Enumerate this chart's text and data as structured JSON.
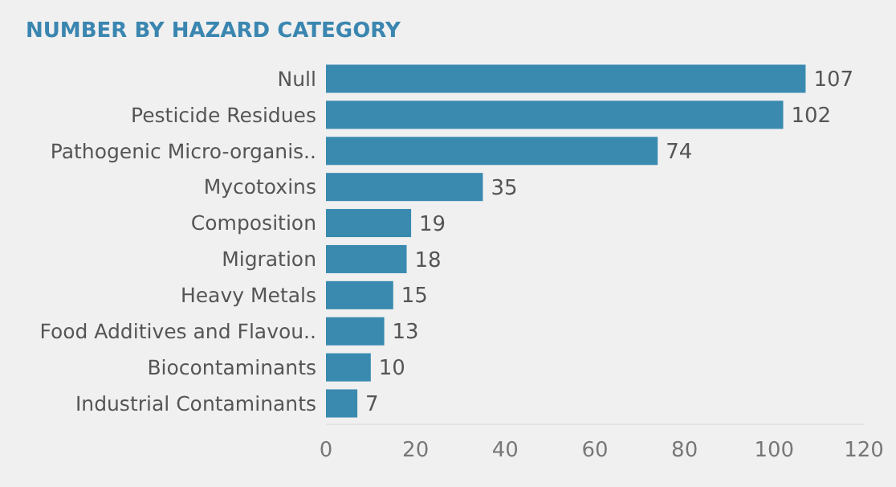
{
  "chart_data": {
    "type": "bar",
    "orientation": "horizontal",
    "title": "NUMBER BY HAZARD CATEGORY",
    "categories": [
      "Null",
      "Pesticide Residues",
      "Pathogenic Micro-organis..",
      "Mycotoxins",
      "Composition",
      "Migration",
      "Heavy Metals",
      "Food Additives and Flavou..",
      "Biocontaminants",
      "Industrial Contaminants"
    ],
    "values": [
      107,
      102,
      74,
      35,
      19,
      18,
      15,
      13,
      10,
      7
    ],
    "color": "#3a8ab0",
    "xlim": [
      0,
      120
    ],
    "xticks": [
      0,
      20,
      40,
      60,
      80,
      100,
      120
    ],
    "grid": false,
    "data_labels": true
  }
}
